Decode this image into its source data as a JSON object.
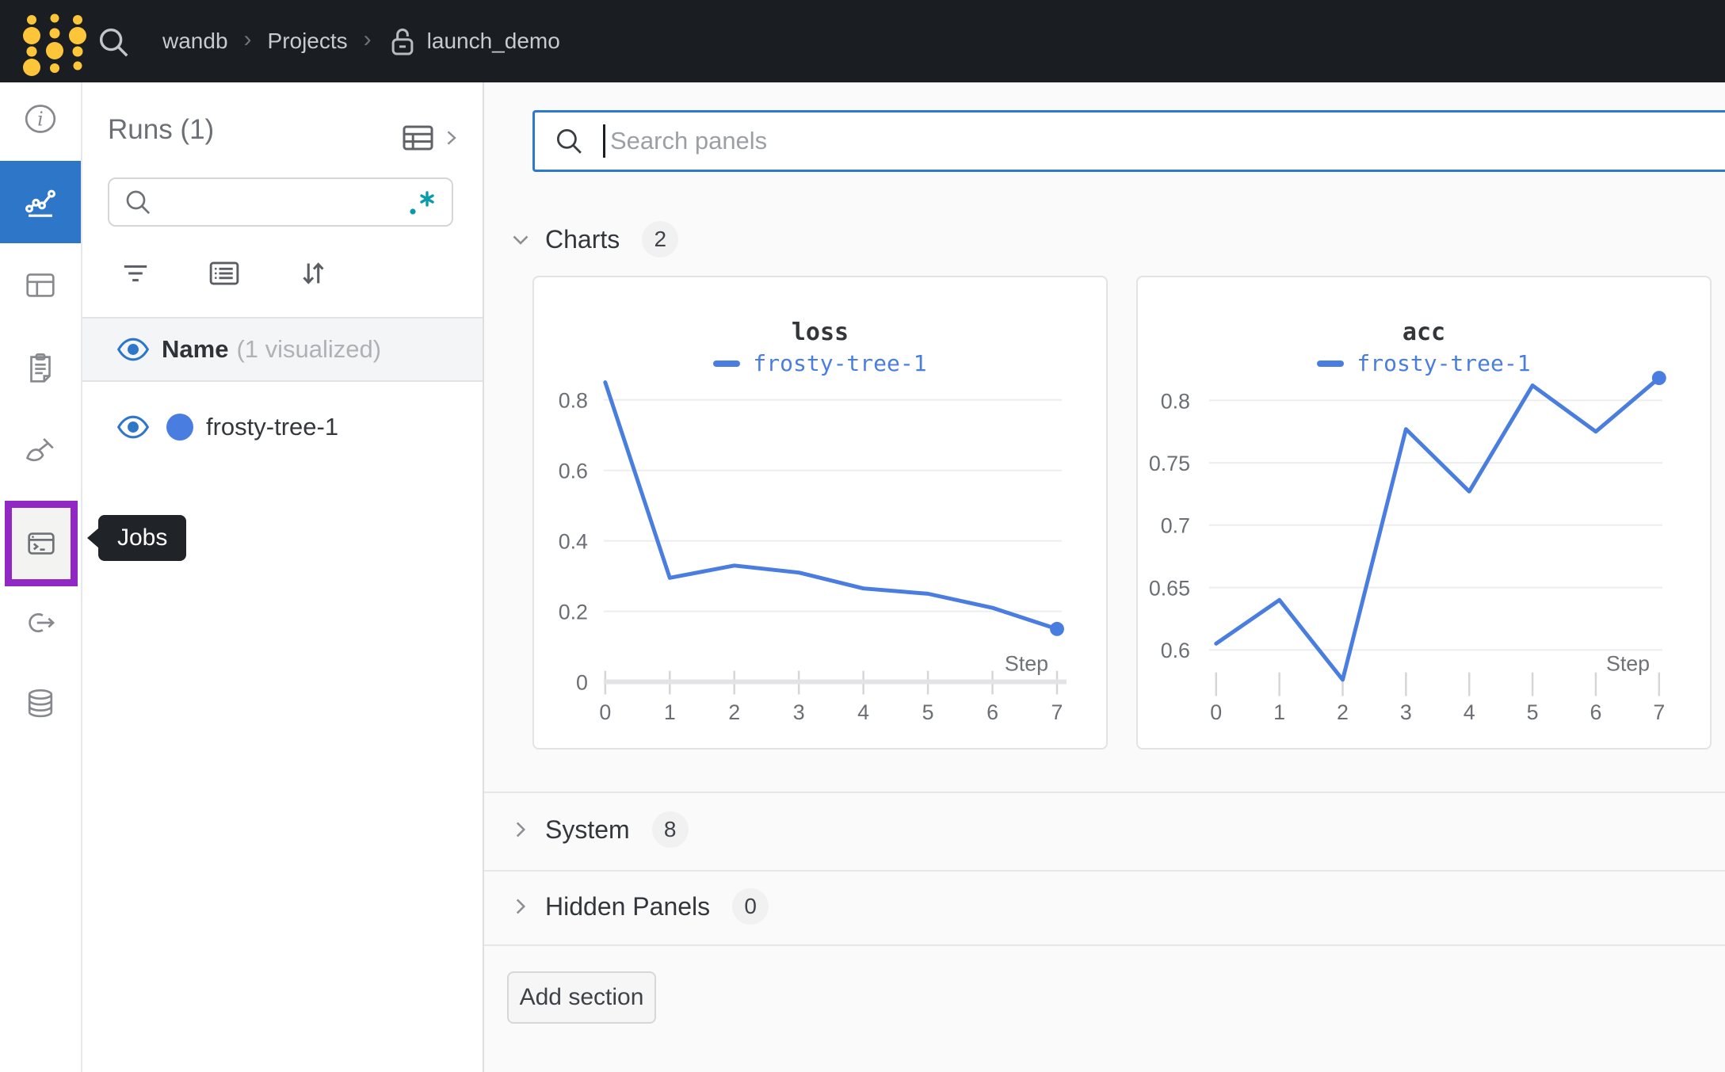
{
  "topbar": {
    "breadcrumb": {
      "items": [
        "wandb",
        "Projects",
        "launch_demo"
      ],
      "separator": "›"
    }
  },
  "sidebar": {
    "tooltip": "Jobs",
    "items": [
      {
        "icon": "info-icon",
        "active": false
      },
      {
        "icon": "line-chart-icon",
        "active": true
      },
      {
        "icon": "panels-icon",
        "active": false
      },
      {
        "icon": "clipboard-icon",
        "active": false
      },
      {
        "icon": "broom-icon",
        "active": false
      },
      {
        "icon": "terminal-jobs-icon",
        "active": false,
        "highlighted": true
      },
      {
        "icon": "launch-arrow-icon",
        "active": false
      },
      {
        "icon": "database-icon",
        "active": false
      }
    ]
  },
  "runs_panel": {
    "title": "Runs (1)",
    "search_value": "",
    "name_header": {
      "label": "Name",
      "annotation": "(1 visualized)"
    },
    "run": {
      "name": "frosty-tree-1",
      "color": "#4a7de0"
    }
  },
  "main": {
    "search": {
      "placeholder": "Search panels"
    },
    "sections": [
      {
        "label": "Charts",
        "count": "2",
        "state": "expanded"
      },
      {
        "label": "System",
        "count": "8",
        "state": "collapsed"
      },
      {
        "label": "Hidden Panels",
        "count": "0",
        "state": "collapsed"
      }
    ],
    "add_section_label": "Add section"
  },
  "colors": {
    "accent_blue": "#2e76c8",
    "highlight_purple": "#9228c4",
    "run_blue": "#4a7de0",
    "logo_gold": "#fdc63a",
    "regex_teal": "#0a9bab"
  },
  "chart_data": [
    {
      "type": "line",
      "title": "loss",
      "x": [
        0,
        1,
        2,
        3,
        4,
        5,
        6,
        7
      ],
      "xlabel": "Step",
      "series": [
        {
          "name": "frosty-tree-1",
          "color": "#4a7de0",
          "values": [
            0.85,
            0.295,
            0.33,
            0.31,
            0.265,
            0.25,
            0.21,
            0.15
          ]
        }
      ],
      "ylim": [
        0,
        0.88
      ],
      "yticks": [
        0,
        0.2,
        0.4,
        0.6,
        0.8
      ],
      "grid": true,
      "legend_position": "top",
      "end_point_marker": true,
      "zero_baseline": true
    },
    {
      "type": "line",
      "title": "acc",
      "x": [
        0,
        1,
        2,
        3,
        4,
        5,
        6,
        7
      ],
      "xlabel": "Step",
      "series": [
        {
          "name": "frosty-tree-1",
          "color": "#4a7de0",
          "values": [
            0.605,
            0.64,
            0.576,
            0.777,
            0.727,
            0.812,
            0.775,
            0.818
          ]
        }
      ],
      "ylim": [
        0.563,
        0.823
      ],
      "yticks": [
        0.6,
        0.65,
        0.7,
        0.75,
        0.8
      ],
      "grid": true,
      "legend_position": "top",
      "end_point_marker": true,
      "zero_baseline": false
    }
  ]
}
